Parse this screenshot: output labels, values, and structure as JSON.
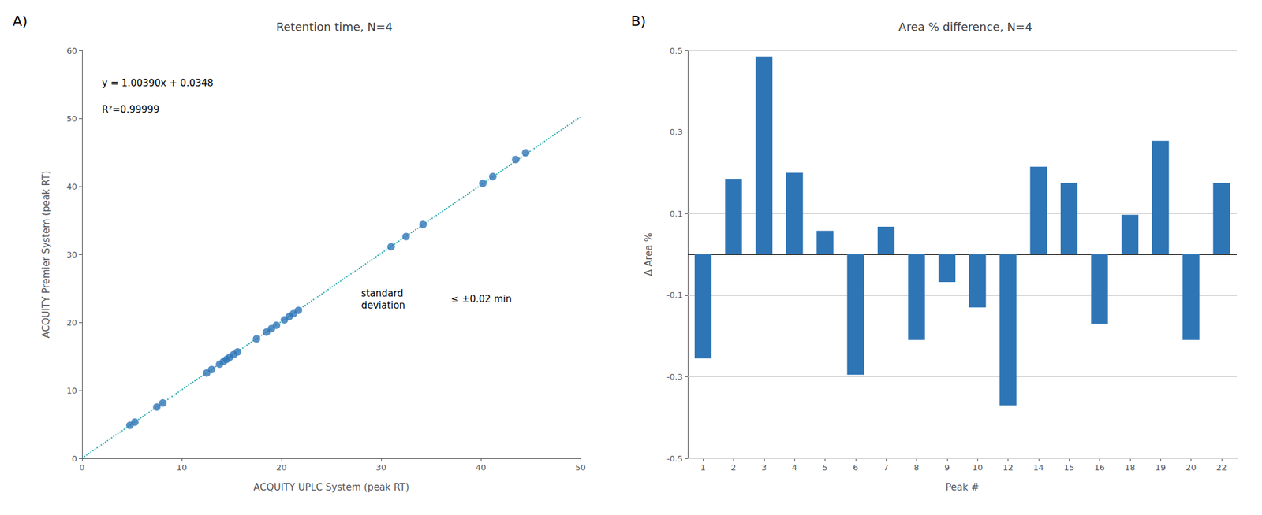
{
  "chart_data": [
    {
      "type": "scatter",
      "panel_label": "A)",
      "title": "Retention time, N=4",
      "x_label": "ACQUITY UPLC System (peak RT)",
      "y_label": "ACQUITY Premier System (peak RT)",
      "series": [
        {
          "type": "scatter",
          "color": "#2E75B6",
          "marker": "circle",
          "x": [
            4.8,
            5.3,
            7.5,
            8.1,
            12.5,
            13.0,
            13.8,
            14.2,
            14.5,
            14.8,
            15.2,
            15.6,
            17.5,
            18.5,
            19.0,
            19.5,
            20.3,
            20.8,
            21.2,
            21.7,
            31.0,
            32.5,
            34.2,
            40.2,
            41.2,
            43.5,
            44.5
          ],
          "values": [
            4.85,
            5.33,
            7.55,
            8.14,
            12.55,
            13.05,
            13.85,
            14.25,
            14.55,
            14.85,
            15.25,
            15.65,
            17.57,
            18.57,
            19.07,
            19.57,
            20.37,
            20.87,
            21.27,
            21.77,
            31.12,
            32.62,
            34.39,
            40.43,
            41.43,
            43.93,
            44.93
          ]
        },
        {
          "type": "line",
          "color": "#2BAAB0",
          "line_style": "dotted",
          "x": [
            0,
            50
          ],
          "values": [
            0.0348,
            50.2298
          ]
        }
      ],
      "annotations": [
        "y = 1.00390x + 0.0348",
        "R²=0.99999",
        "standard\ndeviation",
        "≤ ±0.02 min"
      ],
      "xlim": [
        0,
        50
      ],
      "ylim": [
        0,
        60
      ],
      "xticks": [
        0,
        10,
        20,
        30,
        40,
        50
      ],
      "yticks": [
        0,
        10,
        20,
        30,
        40,
        50,
        60
      ],
      "grid": false
    },
    {
      "type": "bar",
      "panel_label": "B)",
      "title": "Area % difference, N=4",
      "x_label": "Peak #",
      "y_label": "Δ Area %",
      "categories": [
        "1",
        "2",
        "3",
        "4",
        "5",
        "6",
        "7",
        "8",
        "9",
        "10",
        "12",
        "14",
        "15",
        "16",
        "18",
        "19",
        "20",
        "22"
      ],
      "values": [
        -0.255,
        0.185,
        0.485,
        0.2,
        0.058,
        -0.295,
        0.068,
        -0.21,
        -0.068,
        -0.13,
        -0.37,
        0.215,
        0.175,
        -0.17,
        0.097,
        0.278,
        -0.21,
        0.175
      ],
      "color": "#2E75B6",
      "ylim": [
        -0.5,
        0.5
      ],
      "yticks": [
        -0.5,
        -0.3,
        -0.1,
        0.1,
        0.3,
        0.5
      ],
      "grid": true
    }
  ]
}
